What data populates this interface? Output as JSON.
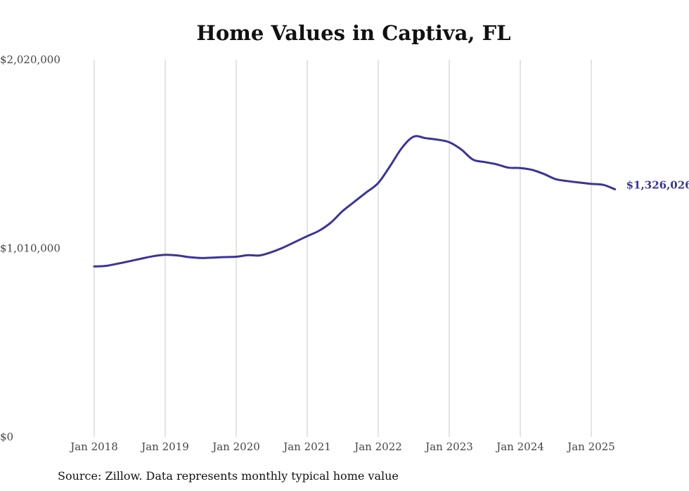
{
  "chart_data": {
    "type": "line",
    "title": "Home Values in Captiva, FL",
    "source": "Source: Zillow. Data represents monthly typical home value",
    "xlabel": "",
    "ylabel": "",
    "ylim": [
      0,
      2020000
    ],
    "yticks": [
      {
        "value": 0,
        "label": "$0"
      },
      {
        "value": 1010000,
        "label": "$1,010,000"
      },
      {
        "value": 2020000,
        "label": "$2,020,000"
      }
    ],
    "xticks": [
      {
        "value": "2018-01",
        "label": "Jan 2018"
      },
      {
        "value": "2019-01",
        "label": "Jan 2019"
      },
      {
        "value": "2020-01",
        "label": "Jan 2020"
      },
      {
        "value": "2021-01",
        "label": "Jan 2021"
      },
      {
        "value": "2022-01",
        "label": "Jan 2022"
      },
      {
        "value": "2023-01",
        "label": "Jan 2023"
      },
      {
        "value": "2024-01",
        "label": "Jan 2024"
      },
      {
        "value": "2025-01",
        "label": "Jan 2025"
      }
    ],
    "grid": {
      "vertical": true,
      "horizontal": false
    },
    "line_color": "#3a3596",
    "end_label": "$1,326,026",
    "series": [
      {
        "x": [
          "2018-01",
          "2018-03",
          "2018-05",
          "2018-07",
          "2018-09",
          "2018-11",
          "2019-01",
          "2019-03",
          "2019-05",
          "2019-07",
          "2019-09",
          "2019-11",
          "2020-01",
          "2020-03",
          "2020-05",
          "2020-07",
          "2020-09",
          "2020-11",
          "2021-01",
          "2021-03",
          "2021-05",
          "2021-07",
          "2021-09",
          "2021-11",
          "2022-01",
          "2022-03",
          "2022-05",
          "2022-07",
          "2022-09",
          "2022-11",
          "2023-01",
          "2023-03",
          "2023-05",
          "2023-07",
          "2023-09",
          "2023-11",
          "2024-01",
          "2024-03",
          "2024-05",
          "2024-07",
          "2024-09",
          "2024-11",
          "2025-01",
          "2025-03",
          "2025-05"
        ],
        "values": [
          913000,
          916000,
          928000,
          941000,
          955000,
          968000,
          975000,
          972000,
          963000,
          958000,
          960000,
          963000,
          965000,
          973000,
          972000,
          990000,
          1015000,
          1045000,
          1075000,
          1104000,
          1148000,
          1210000,
          1260000,
          1310000,
          1360000,
          1450000,
          1548000,
          1608000,
          1600000,
          1592000,
          1578000,
          1540000,
          1485000,
          1472000,
          1460000,
          1442000,
          1440000,
          1430000,
          1408000,
          1380000,
          1370000,
          1362000,
          1355000,
          1350000,
          1326026
        ]
      }
    ]
  }
}
